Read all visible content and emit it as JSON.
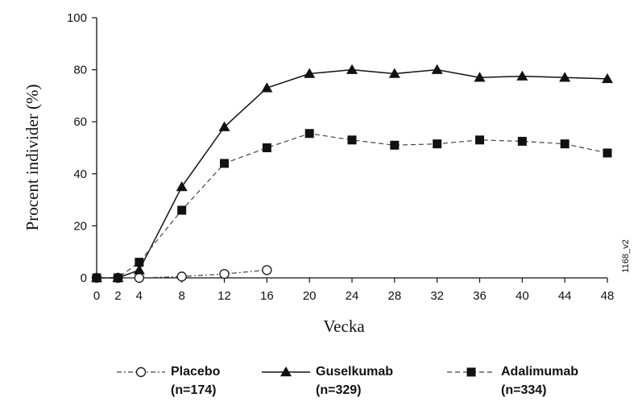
{
  "chart_data": {
    "type": "line",
    "xlabel": "Vecka",
    "ylabel": "Procent individer (%)",
    "x_ticks": [
      0,
      2,
      4,
      8,
      12,
      16,
      20,
      24,
      28,
      32,
      36,
      40,
      44,
      48
    ],
    "y_ticks": [
      0,
      20,
      40,
      60,
      80,
      100
    ],
    "xlim": [
      0,
      48
    ],
    "ylim": [
      0,
      100
    ],
    "grid": false,
    "legend_placement": "bottom",
    "code_label": "1168_v2",
    "series": [
      {
        "name": "Placebo",
        "n_label": "(n=174)",
        "marker": "circle-open",
        "line": "dash-dot",
        "x": [
          0,
          2,
          4,
          8,
          12,
          16
        ],
        "y": [
          0,
          0,
          0,
          0.5,
          1.5,
          3
        ]
      },
      {
        "name": "Guselkumab",
        "n_label": "(n=329)",
        "marker": "triangle-filled",
        "line": "solid",
        "x": [
          0,
          2,
          4,
          8,
          12,
          16,
          20,
          24,
          28,
          32,
          36,
          40,
          44,
          48
        ],
        "y": [
          0,
          0,
          3,
          35,
          58,
          73,
          78.5,
          80,
          78.5,
          80,
          77,
          77.5,
          77,
          76.5
        ]
      },
      {
        "name": "Adalimumab",
        "n_label": "(n=334)",
        "marker": "square-filled",
        "line": "dashed",
        "x": [
          0,
          2,
          4,
          8,
          12,
          16,
          20,
          24,
          28,
          32,
          36,
          40,
          44,
          48
        ],
        "y": [
          0,
          0,
          6,
          26,
          44,
          50,
          55.5,
          53,
          51,
          51.5,
          53,
          52.5,
          51.5,
          48
        ]
      }
    ]
  }
}
